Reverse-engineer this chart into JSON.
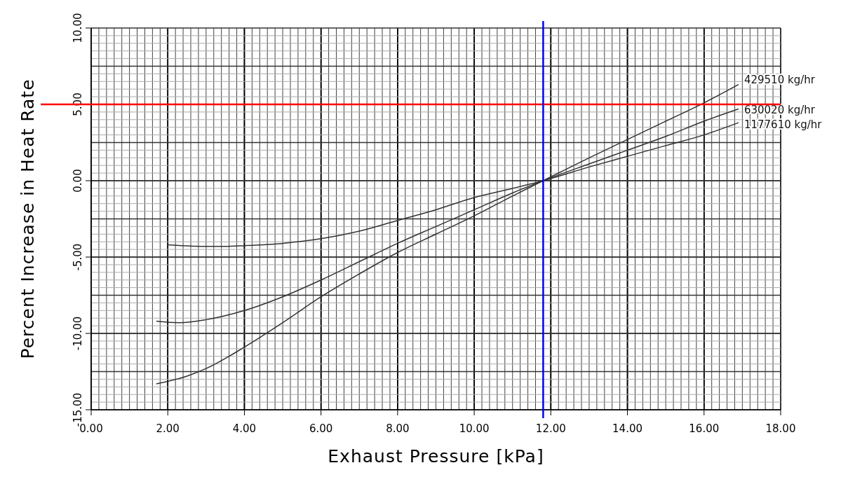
{
  "chart_data": {
    "type": "line",
    "xlabel": "Exhaust Pressure [kPa]",
    "ylabel": "Percent Increase in Heat Rate",
    "xlim": [
      0,
      18
    ],
    "ylim": [
      -15,
      10
    ],
    "xticks": [
      {
        "value": 0,
        "label": "0.00"
      },
      {
        "value": 2,
        "label": "2.00"
      },
      {
        "value": 4,
        "label": "4.00"
      },
      {
        "value": 6,
        "label": "6.00"
      },
      {
        "value": 8,
        "label": "8.00"
      },
      {
        "value": 10,
        "label": "10.00"
      },
      {
        "value": 12,
        "label": "12.00"
      },
      {
        "value": 14,
        "label": "14.00"
      },
      {
        "value": 16,
        "label": "16.00"
      },
      {
        "value": 18,
        "label": "18.00"
      }
    ],
    "yticks": [
      {
        "value": -15,
        "label": "-15.00"
      },
      {
        "value": -10,
        "label": "-10.00"
      },
      {
        "value": -5,
        "label": "-5.00"
      },
      {
        "value": 0,
        "label": "0.00"
      },
      {
        "value": 5,
        "label": "5.00"
      },
      {
        "value": 10,
        "label": "10.00"
      }
    ],
    "grid": true,
    "marker": "none",
    "line_style": "solid",
    "series": [
      {
        "name": "429510 kg/hr",
        "color": "#333333",
        "x": [
          1.7,
          2.5,
          3,
          4,
          5,
          6,
          7,
          8,
          9,
          10,
          11,
          11.8,
          13,
          14,
          15,
          16,
          16.9
        ],
        "values": [
          -13.3,
          -12.8,
          -12.3,
          -10.9,
          -9.3,
          -7.6,
          -6.1,
          -4.7,
          -3.5,
          -2.3,
          -1.0,
          0,
          1.5,
          2.7,
          3.9,
          5.1,
          6.3
        ]
      },
      {
        "name": "630020 kg/hr",
        "color": "#333333",
        "x": [
          1.7,
          2.3,
          3,
          4,
          5,
          6,
          7,
          8,
          9,
          10,
          11,
          11.8,
          13,
          14,
          15,
          16,
          16.9
        ],
        "values": [
          -9.2,
          -9.3,
          -9.1,
          -8.5,
          -7.6,
          -6.5,
          -5.3,
          -4.1,
          -3.0,
          -1.9,
          -0.8,
          0,
          1.1,
          2.0,
          2.9,
          3.9,
          4.7
        ]
      },
      {
        "name": "1177610 kg/hr",
        "color": "#333333",
        "x": [
          2,
          3,
          3.5,
          4,
          5,
          6,
          7,
          8,
          9,
          10,
          11,
          11.8,
          13,
          14,
          15,
          16,
          16.9
        ],
        "values": [
          -4.2,
          -4.3,
          -4.3,
          -4.25,
          -4.1,
          -3.8,
          -3.3,
          -2.6,
          -1.9,
          -1.1,
          -0.5,
          0,
          0.9,
          1.6,
          2.3,
          3.0,
          3.8
        ]
      }
    ],
    "ref_lines": [
      {
        "axis": "y",
        "value": 5,
        "color": "#ff0000"
      },
      {
        "axis": "x",
        "value": 11.8,
        "color": "#0000ff"
      }
    ]
  }
}
